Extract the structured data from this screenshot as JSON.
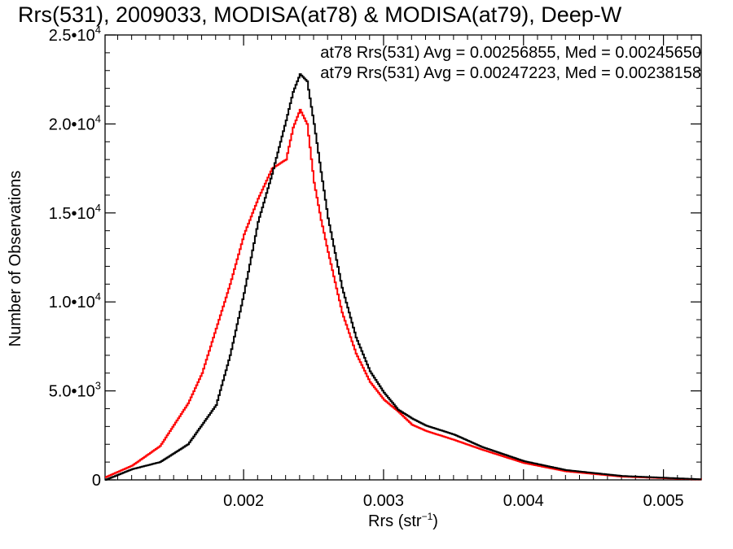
{
  "chart_data": {
    "type": "line",
    "title": "Rrs(531), 2009033, MODISA(at78) & MODISA(at79), Deep-W",
    "xlabel": "Rrs (str",
    "xlabel_sup": "−1",
    "xlabel_close": ")",
    "ylabel": "Number of Observations",
    "xlim": [
      0.00101,
      0.00527
    ],
    "ylim": [
      0,
      25000
    ],
    "x_ticks": [
      {
        "value": 0.002,
        "label": "0.002"
      },
      {
        "value": 0.003,
        "label": "0.003"
      },
      {
        "value": 0.004,
        "label": "0.004"
      },
      {
        "value": 0.005,
        "label": "0.005"
      }
    ],
    "y_ticks": [
      {
        "value": 0,
        "label": "0",
        "exp": ""
      },
      {
        "value": 5000,
        "label": "5.0•10",
        "exp": "3"
      },
      {
        "value": 10000,
        "label": "1.0•10",
        "exp": "4"
      },
      {
        "value": 15000,
        "label": "1.5•10",
        "exp": "4"
      },
      {
        "value": 20000,
        "label": "2.0•10",
        "exp": "4"
      },
      {
        "value": 25000,
        "label": "2.5•10",
        "exp": "4"
      }
    ],
    "grid": false,
    "series": [
      {
        "color": "#000000",
        "annotation": "at78 Rrs(531) Avg = 0.00256855, Med = 0.00245650",
        "x": [
          0.00101,
          0.0012,
          0.0014,
          0.0016,
          0.0018,
          0.0019,
          0.002,
          0.0021,
          0.0022,
          0.0023,
          0.00235,
          0.0024,
          0.00245,
          0.0025,
          0.00255,
          0.0026,
          0.0027,
          0.0028,
          0.0029,
          0.003,
          0.0031,
          0.0032,
          0.0033,
          0.0035,
          0.0037,
          0.004,
          0.0043,
          0.0047,
          0.00527
        ],
        "values": [
          0,
          600,
          1000,
          2000,
          4200,
          7000,
          10500,
          14500,
          17200,
          20200,
          21800,
          22800,
          22400,
          20000,
          17300,
          14700,
          10800,
          8000,
          6100,
          4900,
          3950,
          3450,
          3050,
          2550,
          1850,
          1050,
          550,
          220,
          30
        ]
      },
      {
        "color": "#ff0000",
        "annotation": "at79 Rrs(531) Avg = 0.00247223, Med = 0.00238158",
        "x": [
          0.00101,
          0.0012,
          0.0014,
          0.0016,
          0.0017,
          0.0018,
          0.0019,
          0.002,
          0.0021,
          0.0022,
          0.0023,
          0.00235,
          0.0024,
          0.00245,
          0.0025,
          0.00255,
          0.0026,
          0.0027,
          0.0028,
          0.0029,
          0.003,
          0.0031,
          0.0032,
          0.0033,
          0.0035,
          0.0037,
          0.004,
          0.0043,
          0.0047,
          0.00527
        ],
        "values": [
          150,
          800,
          1900,
          4300,
          6000,
          8500,
          11000,
          13800,
          15800,
          17500,
          18000,
          19800,
          20800,
          20000,
          16700,
          14600,
          12800,
          9400,
          7100,
          5500,
          4500,
          3850,
          3100,
          2750,
          2250,
          1700,
          950,
          480,
          180,
          20
        ]
      }
    ]
  }
}
